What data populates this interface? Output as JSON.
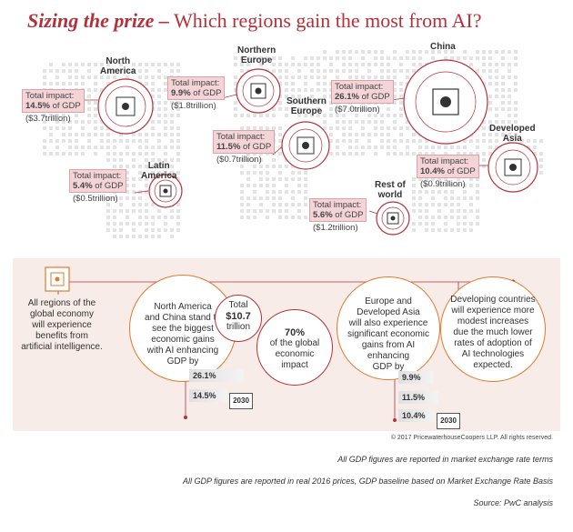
{
  "header": {
    "title_strong": "Sizing the prize –",
    "title_rest": " Which regions gain the most from AI?"
  },
  "regions": {
    "north_america": {
      "name_l1": "North",
      "name_l2": "America",
      "label": "Total impact:",
      "pct": "14.5%",
      "suffix": " of GDP",
      "tril": "($3.7trillion)"
    },
    "northern_europe": {
      "name_l1": "Northern",
      "name_l2": "Europe",
      "label": "Total impact:",
      "pct": "9.9%",
      "suffix": " of GDP",
      "tril": "($1.8trillion)"
    },
    "southern_europe": {
      "name_l1": "Southern",
      "name_l2": "Europe",
      "label": "Total impact:",
      "pct": "11.5%",
      "suffix": " of GDP",
      "tril": "($0.7trillion)"
    },
    "china": {
      "name_l1": "China",
      "label": "Total impact:",
      "pct": "26.1%",
      "suffix": " of GDP",
      "tril": "($7.0trillion)"
    },
    "developed_asia": {
      "name_l1": "Developed",
      "name_l2": "Asia",
      "label": "Total impact:",
      "pct": "10.4%",
      "suffix": " of GDP",
      "tril": "($0.9trillion)"
    },
    "latin_america": {
      "name_l1": "Latin",
      "name_l2": "America",
      "label": "Total impact:",
      "pct": "5.4%",
      "suffix": " of GDP",
      "tril": "($0.5trillion)"
    },
    "rest_of_world": {
      "name_l1": "Rest of",
      "name_l2": "world",
      "label": "Total impact:",
      "pct": "5.6%",
      "suffix": " of GDP",
      "tril": "($1.2trillion)"
    }
  },
  "panel": {
    "intro": [
      "All regions of the",
      "global economy",
      "will experience",
      "benefits from",
      "artificial intelligence."
    ],
    "na_china": [
      "North America",
      "and China stand to",
      "see the biggest",
      "economic gains",
      "with AI enhancing",
      "GDP by"
    ],
    "total": [
      "Total",
      "$10.7",
      "trillion"
    ],
    "share": [
      "70%",
      "of the global",
      "economic",
      "impact"
    ],
    "europe_asia": [
      "Europe and",
      "Developed Asia",
      "will also experience",
      "significant economic",
      "gains from AI",
      "enhancing",
      "GDP by"
    ],
    "developing": [
      "Developing countries",
      "will experience more",
      "modest increases",
      "due the much lower",
      "rates of adoption of",
      "AI technologies",
      "expected."
    ],
    "bars_left": [
      "26.1%",
      "14.5%"
    ],
    "bars_right": [
      "9.9%",
      "11.5%",
      "10.4%"
    ],
    "year_left": "2030",
    "year_right": "2030"
  },
  "colors": {
    "red": "#b5313a",
    "orange": "#e07a2e",
    "panel_bg": "#f7ece7",
    "dot": "#e3e3e3"
  },
  "footer": {
    "copyright": "© 2017 PricewaterhouseCoopers LLP. All rights reserved.",
    "note1": "All GDP figures are reported in market exchange rate terms",
    "note2": "All GDP figures are reported in real 2016 prices, GDP baseline based on Market Exchange Rate Basis",
    "source": "Source: PwC analysis"
  }
}
